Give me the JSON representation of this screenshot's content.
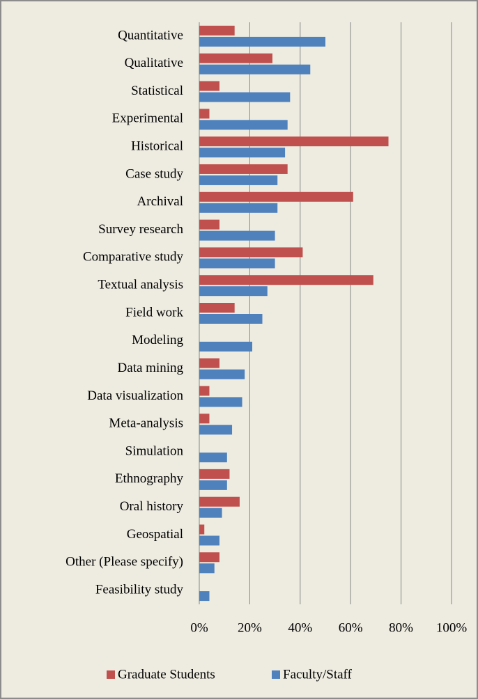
{
  "chart_data": {
    "type": "bar",
    "orientation": "horizontal",
    "categories": [
      "Quantitative",
      "Qualitative",
      "Statistical",
      "Experimental",
      "Historical",
      "Case study",
      "Archival",
      "Survey research",
      "Comparative study",
      "Textual analysis",
      "Field work",
      "Modeling",
      "Data mining",
      "Data visualization",
      "Meta-analysis",
      "Simulation",
      "Ethnography",
      "Oral history",
      "Geospatial",
      "Other (Please specify)",
      "Feasibility study"
    ],
    "series": [
      {
        "name": "Graduate Students",
        "color": "#c0504d",
        "values": [
          14,
          29,
          8,
          4,
          75,
          35,
          61,
          8,
          41,
          69,
          14,
          0,
          8,
          4,
          4,
          0,
          12,
          16,
          2,
          8,
          0
        ]
      },
      {
        "name": "Faculty/Staff",
        "color": "#4f81bd",
        "values": [
          50,
          44,
          36,
          35,
          34,
          31,
          31,
          30,
          30,
          27,
          25,
          21,
          18,
          17,
          13,
          11,
          11,
          9,
          8,
          6,
          4
        ]
      }
    ],
    "xlim": [
      0,
      100
    ],
    "xticks": [
      {
        "value": 0,
        "label": "0%"
      },
      {
        "value": 20,
        "label": "20%"
      },
      {
        "value": 40,
        "label": "40%"
      },
      {
        "value": 60,
        "label": "60%"
      },
      {
        "value": 80,
        "label": "80%"
      },
      {
        "value": 100,
        "label": "100%"
      }
    ],
    "grid": true,
    "legend": "bottom"
  }
}
